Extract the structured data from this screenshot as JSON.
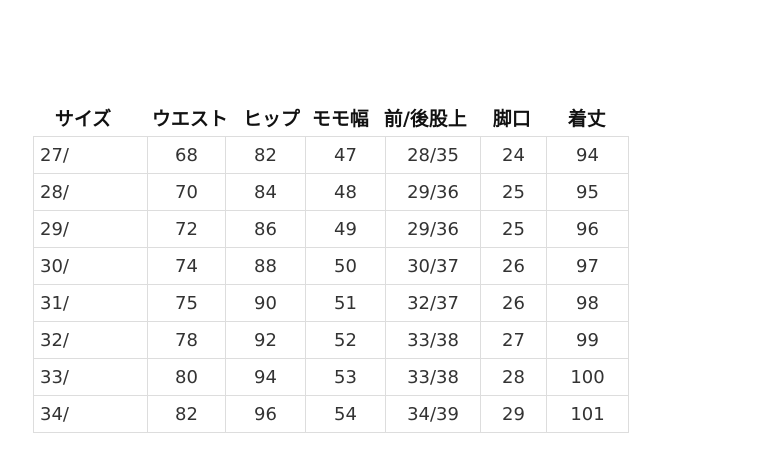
{
  "headers": [
    "サイズ",
    "ウエスト",
    "ヒップ",
    "モモ幅",
    "前/後股上",
    "脚口",
    "着丈"
  ],
  "rows": [
    [
      "27/",
      "68",
      "82",
      "47",
      "28/35",
      "24",
      "94"
    ],
    [
      "28/",
      "70",
      "84",
      "48",
      "29/36",
      "25",
      "95"
    ],
    [
      "29/",
      "72",
      "86",
      "49",
      "29/36",
      "25",
      "96"
    ],
    [
      "30/",
      "74",
      "88",
      "50",
      "30/37",
      "26",
      "97"
    ],
    [
      "31/",
      "75",
      "90",
      "51",
      "32/37",
      "26",
      "98"
    ],
    [
      "32/",
      "78",
      "92",
      "52",
      "33/38",
      "27",
      "99"
    ],
    [
      "33/",
      "80",
      "94",
      "53",
      "33/38",
      "28",
      "100"
    ],
    [
      "34/",
      "82",
      "96",
      "54",
      "34/39",
      "29",
      "101"
    ]
  ]
}
